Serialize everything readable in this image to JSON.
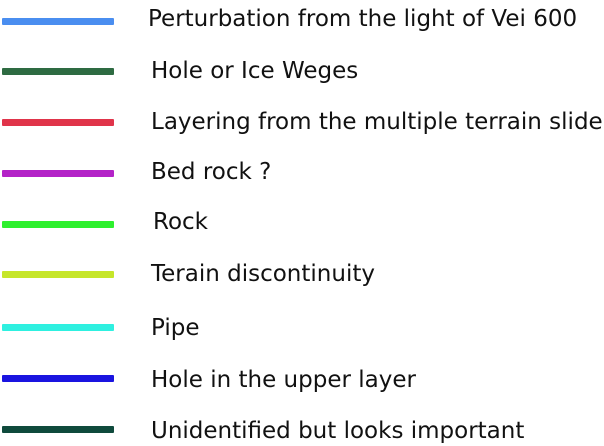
{
  "legend": {
    "items": [
      {
        "label": "Perturbation from the light of Vei 600",
        "color": "#4a8ef0"
      },
      {
        "label": "Hole or Ice Weges",
        "color": "#2e6b42"
      },
      {
        "label": "Layering from the multiple terrain slide",
        "color": "#e0344a"
      },
      {
        "label": "Bed rock ?",
        "color": "#b423c8"
      },
      {
        "label": "Rock",
        "color": "#2ef02e"
      },
      {
        "label": "Terain discontinuity",
        "color": "#c6e62a"
      },
      {
        "label": "Pipe",
        "color": "#2ef0e0"
      },
      {
        "label": "Hole in the upper layer",
        "color": "#1a14e0"
      },
      {
        "label": "Unidentified but looks important",
        "color": "#0f4a3c"
      }
    ]
  }
}
